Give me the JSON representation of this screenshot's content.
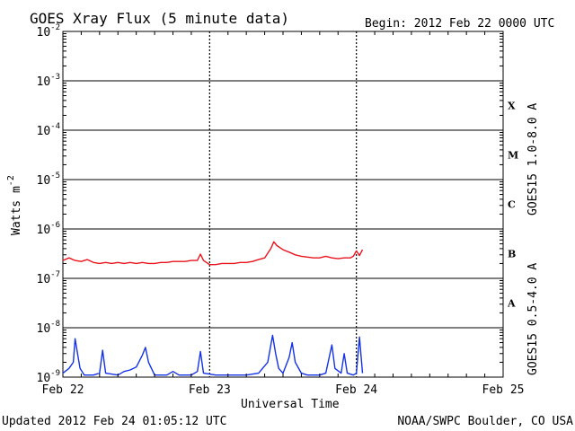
{
  "chart_data": {
    "type": "line",
    "title": "GOES Xray Flux (5 minute data)",
    "begin_label": "Begin:  2012 Feb 22 0000 UTC",
    "ylabel": "Watts m",
    "ylabel_sup": "-2",
    "xlabel": "Universal Time",
    "updated": "Updated 2012 Feb 24 01:05:12 UTC",
    "credit": "NOAA/SWPC Boulder, CO USA",
    "y_scale": "log",
    "ylim": [
      1e-09,
      0.01
    ],
    "xlim": [
      0,
      72
    ],
    "x_unit": "hours since 2012 Feb 22 0000 UTC",
    "y_tick_labels": [
      {
        "base": "10",
        "exp": "-9",
        "value": -9
      },
      {
        "base": "10",
        "exp": "-8",
        "value": -8
      },
      {
        "base": "10",
        "exp": "-7",
        "value": -7
      },
      {
        "base": "10",
        "exp": "-6",
        "value": -6
      },
      {
        "base": "10",
        "exp": "-5",
        "value": -5
      },
      {
        "base": "10",
        "exp": "-4",
        "value": -4
      },
      {
        "base": "10",
        "exp": "-3",
        "value": -3
      },
      {
        "base": "10",
        "exp": "-2",
        "value": -2
      }
    ],
    "x_tick_labels": [
      {
        "label": "Feb 22",
        "hour": 0
      },
      {
        "label": "Feb 23",
        "hour": 24
      },
      {
        "label": "Feb 24",
        "hour": 48
      },
      {
        "label": "Feb 25",
        "hour": 72
      }
    ],
    "flare_classes": [
      {
        "label": "X",
        "value": -3.5
      },
      {
        "label": "M",
        "value": -4.5
      },
      {
        "label": "C",
        "value": -5.5
      },
      {
        "label": "B",
        "value": -6.5
      },
      {
        "label": "A",
        "value": -7.5
      }
    ],
    "series": [
      {
        "name": "GOES15 1.0-8.0 A",
        "color": "#e8141e",
        "points": [
          [
            0,
            2.3e-07
          ],
          [
            1,
            2.6e-07
          ],
          [
            2,
            2.3e-07
          ],
          [
            3,
            2.2e-07
          ],
          [
            4,
            2.4e-07
          ],
          [
            5,
            2.1e-07
          ],
          [
            6,
            2e-07
          ],
          [
            7,
            2.1e-07
          ],
          [
            8,
            2e-07
          ],
          [
            9,
            2.1e-07
          ],
          [
            10,
            2e-07
          ],
          [
            11,
            2.1e-07
          ],
          [
            12,
            2e-07
          ],
          [
            13,
            2.1e-07
          ],
          [
            14,
            2e-07
          ],
          [
            15,
            2e-07
          ],
          [
            16,
            2.1e-07
          ],
          [
            17,
            2.1e-07
          ],
          [
            18,
            2.2e-07
          ],
          [
            19,
            2.2e-07
          ],
          [
            20,
            2.2e-07
          ],
          [
            21,
            2.3e-07
          ],
          [
            22,
            2.3e-07
          ],
          [
            22.5,
            3.1e-07
          ],
          [
            23,
            2.3e-07
          ],
          [
            24,
            1.9e-07
          ],
          [
            25,
            1.9e-07
          ],
          [
            26,
            2e-07
          ],
          [
            27,
            2e-07
          ],
          [
            28,
            2e-07
          ],
          [
            29,
            2.1e-07
          ],
          [
            30,
            2.1e-07
          ],
          [
            31,
            2.2e-07
          ],
          [
            32,
            2.4e-07
          ],
          [
            33,
            2.6e-07
          ],
          [
            34,
            4e-07
          ],
          [
            34.5,
            5.5e-07
          ],
          [
            35,
            4.6e-07
          ],
          [
            36,
            3.8e-07
          ],
          [
            37,
            3.4e-07
          ],
          [
            38,
            3e-07
          ],
          [
            39,
            2.8e-07
          ],
          [
            40,
            2.7e-07
          ],
          [
            41,
            2.6e-07
          ],
          [
            42,
            2.6e-07
          ],
          [
            43,
            2.8e-07
          ],
          [
            44,
            2.6e-07
          ],
          [
            45,
            2.5e-07
          ],
          [
            46,
            2.6e-07
          ],
          [
            47,
            2.6e-07
          ],
          [
            47.5,
            2.8e-07
          ],
          [
            48,
            3.6e-07
          ],
          [
            48.5,
            2.9e-07
          ],
          [
            49,
            3.8e-07
          ]
        ]
      },
      {
        "name": "GOES15 0.5-4.0 A",
        "color": "#1432e6",
        "points": [
          [
            0,
            1.2e-09
          ],
          [
            1,
            1.5e-09
          ],
          [
            1.7,
            2e-09
          ],
          [
            2.0,
            6e-09
          ],
          [
            2.4,
            3e-09
          ],
          [
            2.8,
            1.5e-09
          ],
          [
            3.5,
            1.1e-09
          ],
          [
            5,
            1.1e-09
          ],
          [
            6,
            1.2e-09
          ],
          [
            6.5,
            3.5e-09
          ],
          [
            7,
            1.2e-09
          ],
          [
            9,
            1.1e-09
          ],
          [
            10,
            1.3e-09
          ],
          [
            11,
            1.4e-09
          ],
          [
            12,
            1.6e-09
          ],
          [
            13,
            2.8e-09
          ],
          [
            13.5,
            4e-09
          ],
          [
            14,
            2e-09
          ],
          [
            15,
            1.1e-09
          ],
          [
            17,
            1.1e-09
          ],
          [
            18,
            1.3e-09
          ],
          [
            19,
            1.1e-09
          ],
          [
            21,
            1.1e-09
          ],
          [
            22,
            1.3e-09
          ],
          [
            22.5,
            3.3e-09
          ],
          [
            23,
            1.2e-09
          ],
          [
            25,
            1.1e-09
          ],
          [
            28,
            1.1e-09
          ],
          [
            30,
            1.1e-09
          ],
          [
            32,
            1.2e-09
          ],
          [
            33.5,
            2e-09
          ],
          [
            34.3,
            7e-09
          ],
          [
            34.8,
            3e-09
          ],
          [
            35.3,
            1.5e-09
          ],
          [
            36,
            1.2e-09
          ],
          [
            37,
            2.5e-09
          ],
          [
            37.5,
            5e-09
          ],
          [
            38,
            2e-09
          ],
          [
            39,
            1.2e-09
          ],
          [
            40,
            1.1e-09
          ],
          [
            42,
            1.1e-09
          ],
          [
            43,
            1.2e-09
          ],
          [
            44,
            4.5e-09
          ],
          [
            44.5,
            1.5e-09
          ],
          [
            45.5,
            1.2e-09
          ],
          [
            46,
            3e-09
          ],
          [
            46.5,
            1.2e-09
          ],
          [
            47.5,
            1.1e-09
          ],
          [
            48,
            1.2e-09
          ],
          [
            48.5,
            6.5e-09
          ],
          [
            49,
            1.2e-09
          ]
        ]
      }
    ]
  }
}
